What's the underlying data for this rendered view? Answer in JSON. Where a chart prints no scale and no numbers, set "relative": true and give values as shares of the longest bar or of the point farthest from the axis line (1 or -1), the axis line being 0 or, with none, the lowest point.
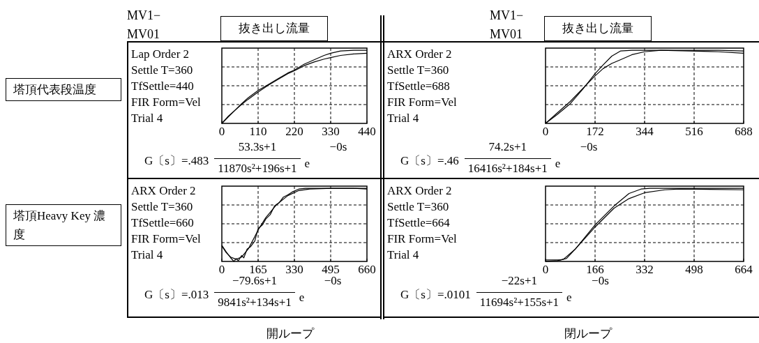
{
  "chart_data": [
    {
      "type": "line",
      "relative": true,
      "title": "抜き出し流量",
      "subtitle": "MV1− MV01",
      "ylabel": "塔頂代表段温度",
      "xlim": [
        0,
        440
      ],
      "xticks": [
        0,
        110,
        220,
        330,
        440
      ],
      "grid": true,
      "line_style": "solid",
      "marker": "none",
      "annotations": [
        "Lap Order 2",
        "Settle T=360",
        "TfSettle=440",
        "FIR Form=Vel",
        "Trial 4",
        "G〔s〕=.483",
        "53.3s+1",
        "11870s²+196s+1",
        "e",
        "−0s"
      ],
      "series": [
        {
          "color": "#000000",
          "x": [
            0,
            20,
            40,
            60,
            80,
            110,
            140,
            170,
            200,
            220,
            250,
            280,
            310,
            330,
            360,
            400,
            440
          ],
          "values": [
            0,
            0.1,
            0.18,
            0.26,
            0.33,
            0.43,
            0.52,
            0.6,
            0.68,
            0.72,
            0.79,
            0.84,
            0.88,
            0.9,
            0.93,
            0.95,
            0.96
          ]
        },
        {
          "color": "#000000",
          "x": [
            0,
            20,
            40,
            60,
            80,
            110,
            140,
            170,
            200,
            220,
            250,
            280,
            310,
            330,
            360,
            400,
            440
          ],
          "values": [
            0,
            0.09,
            0.18,
            0.27,
            0.35,
            0.45,
            0.53,
            0.61,
            0.69,
            0.73,
            0.81,
            0.87,
            0.93,
            0.96,
            0.99,
            1,
            1
          ]
        }
      ]
    },
    {
      "type": "line",
      "relative": true,
      "title": "抜き出し流量",
      "subtitle": "MV1− MV01",
      "xlim": [
        0,
        688
      ],
      "xticks": [
        0,
        172,
        344,
        516,
        688
      ],
      "grid": true,
      "line_style": "solid",
      "marker": "none",
      "annotations": [
        "ARX Order 2",
        "Settle T=360",
        "TfSettle=688",
        "FIR Form=Vel",
        "Trial 4",
        "G〔s〕=.46",
        "74.2s+1",
        "16416s²+184s+1",
        "e",
        "−0s"
      ],
      "series": [
        {
          "color": "#000000",
          "x": [
            0,
            40,
            86,
            130,
            172,
            200,
            230,
            260,
            300,
            344,
            400,
            500,
            600,
            688
          ],
          "values": [
            0,
            0.12,
            0.27,
            0.47,
            0.68,
            0.8,
            0.92,
            0.99,
            1,
            1,
            1,
            0.99,
            0.98,
            0.96
          ]
        },
        {
          "color": "#000000",
          "x": [
            0,
            40,
            86,
            130,
            172,
            200,
            230,
            260,
            300,
            344,
            400,
            500,
            600,
            688
          ],
          "values": [
            0,
            0.14,
            0.3,
            0.48,
            0.65,
            0.75,
            0.82,
            0.87,
            0.94,
            0.98,
            1,
            1,
            1,
            0.99
          ]
        }
      ]
    },
    {
      "type": "line",
      "relative": true,
      "ylabel": "塔頂Heavy Key 濃度",
      "xlabel": "開ループ",
      "xlim": [
        0,
        660
      ],
      "xticks": [
        0,
        165,
        330,
        495,
        660
      ],
      "grid": true,
      "line_style": "solid",
      "marker": "none",
      "annotations": [
        "ARX Order 2",
        "Settle T=360",
        "TfSettle=660",
        "FIR Form=Vel",
        "Trial 4",
        "G〔s〕=.013",
        "−79.6s+1",
        "9841s²+134s+1",
        "e",
        "−0s"
      ],
      "series": [
        {
          "color": "#000000",
          "x": [
            0,
            20,
            40,
            65,
            90,
            120,
            150,
            165,
            200,
            250,
            300,
            350,
            400,
            500,
            660
          ],
          "values": [
            0.21,
            0.12,
            0.06,
            0.03,
            0.06,
            0.17,
            0.34,
            0.43,
            0.6,
            0.78,
            0.9,
            0.97,
            0.99,
            1,
            1
          ]
        },
        {
          "color": "#000000",
          "x": [
            0,
            20,
            40,
            55,
            65,
            75,
            90,
            100,
            115,
            130,
            150,
            165,
            185,
            200,
            220,
            240,
            260,
            280,
            300,
            320,
            350,
            380,
            450,
            600,
            660
          ],
          "values": [
            0.22,
            0.13,
            0.05,
            0,
            0.04,
            0.01,
            0.08,
            0.05,
            0.17,
            0.2,
            0.28,
            0.45,
            0.5,
            0.58,
            0.64,
            0.76,
            0.8,
            0.88,
            0.91,
            0.95,
            0.99,
            1,
            1,
            1,
            0.99
          ]
        }
      ]
    },
    {
      "type": "line",
      "relative": true,
      "xlabel": "閉ループ",
      "xlim": [
        0,
        664
      ],
      "xticks": [
        0,
        166,
        332,
        498,
        664
      ],
      "grid": true,
      "line_style": "solid",
      "marker": "none",
      "annotations": [
        "ARX Order 2",
        "Settle T=360",
        "TfSettle=664",
        "FIR Form=Vel",
        "Trial 4",
        "G〔s〕=.0101",
        "−22s+1",
        "11694s²+155s+1",
        "e",
        "−0s"
      ],
      "series": [
        {
          "color": "#000000",
          "x": [
            0,
            40,
            60,
            100,
            166,
            230,
            280,
            332,
            400,
            450,
            664
          ],
          "values": [
            0,
            0.01,
            0.03,
            0.17,
            0.47,
            0.73,
            0.86,
            0.94,
            0.98,
            0.99,
            0.98
          ]
        },
        {
          "color": "#000000",
          "x": [
            0,
            50,
            70,
            100,
            166,
            230,
            280,
            320,
            350,
            664
          ],
          "values": [
            0.02,
            0.02,
            0.04,
            0.17,
            0.5,
            0.76,
            0.93,
            0.99,
            1,
            1
          ]
        }
      ]
    }
  ]
}
